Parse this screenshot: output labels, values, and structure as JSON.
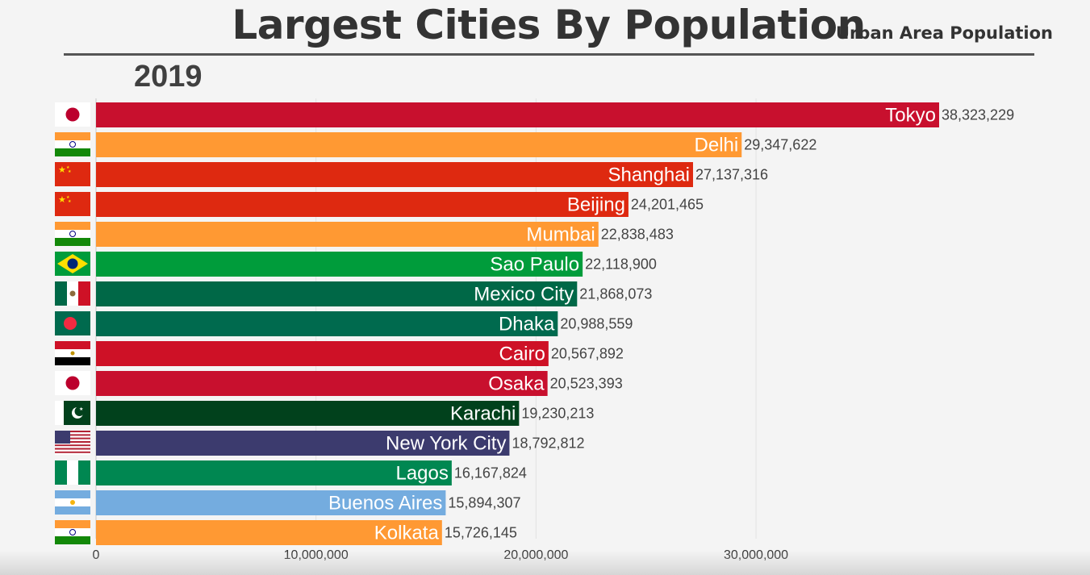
{
  "header": {
    "title": "Largest Cities By Population",
    "subtitle": "Urban Area Population",
    "year": "2019"
  },
  "chart_data": {
    "type": "bar",
    "orientation": "horizontal",
    "title": "Largest Cities By Population",
    "subtitle": "Urban Area Population",
    "xlim": [
      0,
      38323229
    ],
    "xticks": [
      0,
      10000000,
      20000000,
      30000000
    ],
    "xtick_labels": [
      "0",
      "10,000,000",
      "20,000,000",
      "30,000,000"
    ],
    "grid": true,
    "categories": [
      "Tokyo",
      "Delhi",
      "Shanghai",
      "Beijing",
      "Mumbai",
      "Sao Paulo",
      "Mexico City",
      "Dhaka",
      "Cairo",
      "Osaka",
      "Karachi",
      "New York City",
      "Lagos",
      "Buenos Aires",
      "Kolkata"
    ],
    "values": [
      38323229,
      29347622,
      27137316,
      24201465,
      22838483,
      22118900,
      21868073,
      20988559,
      20567892,
      20523393,
      19230213,
      18792812,
      16167824,
      15894307,
      15726145
    ],
    "value_labels": [
      "38,323,229",
      "29,347,622",
      "27,137,316",
      "24,201,465",
      "22,838,483",
      "22,118,900",
      "21,868,073",
      "20,988,559",
      "20,567,892",
      "20,523,393",
      "19,230,213",
      "18,792,812",
      "16,167,824",
      "15,894,307",
      "15,726,145"
    ],
    "colors": [
      "#c8102e",
      "#ff9933",
      "#de2910",
      "#de2910",
      "#ff9933",
      "#009c3b",
      "#006847",
      "#006a4e",
      "#ce1126",
      "#c8102e",
      "#01411c",
      "#3c3b6e",
      "#008751",
      "#74acdf",
      "#ff9933"
    ],
    "flags": [
      "japan-flag",
      "india-flag",
      "china-flag",
      "china-flag",
      "india-flag",
      "brazil-flag",
      "mexico-flag",
      "bangladesh-flag",
      "egypt-flag",
      "japan-flag",
      "pakistan-flag",
      "usa-flag",
      "nigeria-flag",
      "argentina-flag",
      "india-flag"
    ]
  }
}
